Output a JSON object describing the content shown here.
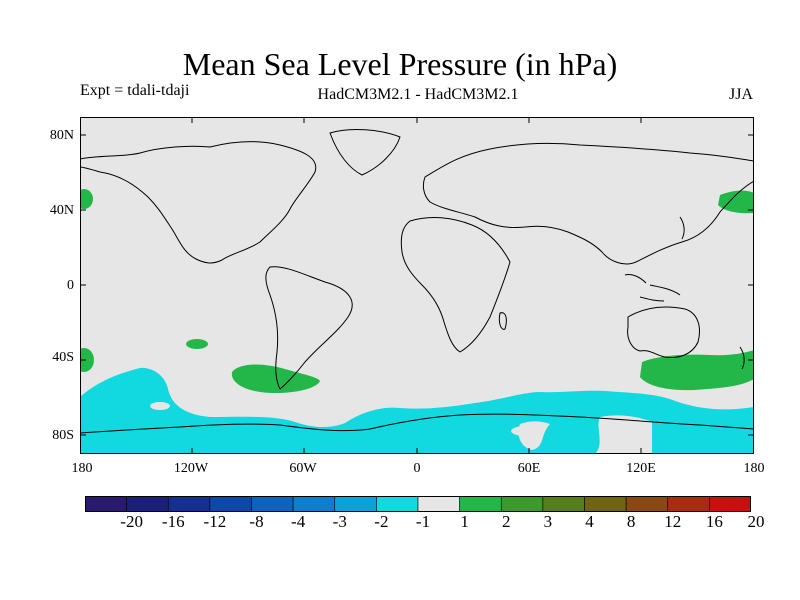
{
  "title": "Mean Sea Level Pressure (in hPa)",
  "experiment_label": "Expt = tdali-tdaji",
  "model_label": "HadCM3M2.1 - HadCM3M2.1",
  "season_label": "JJA",
  "lat_ticks": [
    "80N",
    "40N",
    "0",
    "40S",
    "80S"
  ],
  "lon_ticks": [
    "180",
    "120W",
    "60W",
    "0",
    "60E",
    "120E",
    "180"
  ],
  "colorbar": {
    "labels": [
      "-20",
      "-16",
      "-12",
      "-8",
      "-4",
      "-3",
      "-2",
      "-1",
      "1",
      "2",
      "3",
      "4",
      "8",
      "12",
      "16",
      "20"
    ],
    "colors": [
      "#2a1a6e",
      "#1c1f7a",
      "#14308e",
      "#0c48a8",
      "#0e63bd",
      "#0e7fcc",
      "#0aa2d8",
      "#12d8e0",
      "#e6e6e6",
      "#23b74a",
      "#3c9a2c",
      "#557f1c",
      "#6f6414",
      "#8a4812",
      "#a82c10",
      "#c81010"
    ]
  },
  "colors": {
    "land_fill": "#e6e6e6",
    "positive_anomaly": "#23b74a",
    "negative_anomaly": "#12d8e0",
    "outline": "#000000"
  },
  "anomaly_regions": [
    {
      "label": "positive-north-pacific-west",
      "sign": "+",
      "lon": -178,
      "lat": 44
    },
    {
      "label": "positive-north-pacific-east",
      "sign": "+",
      "lon": 168,
      "lat": 45
    },
    {
      "label": "positive-south-pacific-west",
      "sign": "+",
      "lon": -178,
      "lat": -40
    },
    {
      "label": "positive-southeast-pacific",
      "sign": "+",
      "lon": -84,
      "lat": -47
    },
    {
      "label": "positive-southern-australia",
      "sign": "+",
      "lon": 148,
      "lat": -44
    },
    {
      "label": "negative-southern-ocean",
      "sign": "-",
      "lon": -100,
      "lat": -70
    }
  ]
}
